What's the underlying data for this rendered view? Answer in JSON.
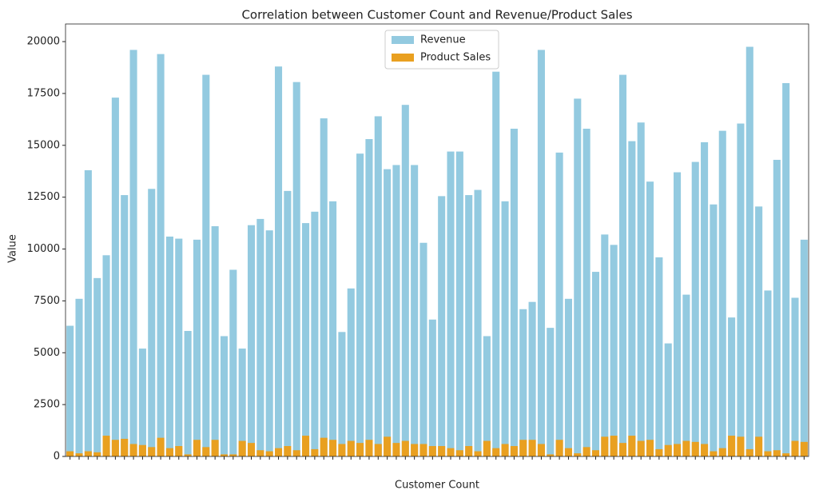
{
  "chart_data": {
    "type": "bar",
    "title": "Correlation between Customer Count and Revenue/Product Sales",
    "x_label": "Customer Count",
    "y_label": "Value",
    "categories": [
      null,
      null,
      null,
      null,
      null,
      null,
      null,
      null,
      null,
      null,
      null,
      null,
      null,
      null,
      null,
      null,
      null,
      null,
      null,
      null,
      null,
      null,
      null,
      null,
      null,
      null,
      null,
      null,
      null,
      null,
      null,
      null,
      null,
      null,
      null,
      null,
      null,
      null,
      null,
      null,
      null,
      null,
      null,
      null,
      null,
      null,
      null,
      null,
      null,
      null,
      null,
      null,
      null,
      null,
      null,
      null,
      null,
      null,
      null,
      null,
      null,
      null,
      null,
      null,
      null,
      null,
      null,
      null,
      null,
      null,
      null,
      null,
      null,
      null,
      null,
      null,
      null,
      null,
      null,
      null,
      null,
      null
    ],
    "series": [
      {
        "name": "Revenue",
        "color": "#93cae0",
        "values": [
          6300,
          7600,
          13800,
          8600,
          9700,
          17300,
          12600,
          19600,
          5200,
          12900,
          19400,
          10600,
          10500,
          6050,
          10450,
          18400,
          11100,
          5800,
          9000,
          5200,
          11150,
          11450,
          10900,
          18800,
          12800,
          18050,
          11250,
          11800,
          16300,
          12300,
          6000,
          8100,
          14600,
          15300,
          16400,
          13850,
          14050,
          16950,
          14050,
          10300,
          6600,
          12550,
          14700,
          14700,
          12600,
          12850,
          5800,
          18550,
          12300,
          15800,
          7100,
          7450,
          19600,
          6200,
          14650,
          7600,
          17250,
          15800,
          8900,
          10700,
          10200,
          18400,
          15200,
          16100,
          13250,
          9600,
          5450,
          13700,
          7800,
          14200,
          15150,
          12150,
          15700,
          6700,
          16050,
          19750,
          12050,
          8000,
          14300,
          18000,
          7650,
          10450
        ]
      },
      {
        "name": "Product Sales",
        "color": "#e9a020",
        "values": [
          250,
          150,
          250,
          200,
          1000,
          800,
          850,
          600,
          550,
          450,
          900,
          400,
          500,
          100,
          800,
          450,
          800,
          100,
          100,
          750,
          650,
          300,
          250,
          400,
          500,
          300,
          1000,
          350,
          900,
          800,
          600,
          750,
          650,
          800,
          600,
          950,
          650,
          750,
          600,
          600,
          500,
          500,
          400,
          300,
          500,
          250,
          750,
          400,
          600,
          500,
          800,
          800,
          600,
          100,
          800,
          400,
          150,
          450,
          300,
          950,
          1000,
          650,
          1000,
          750,
          800,
          350,
          550,
          600,
          750,
          700,
          600,
          250,
          400,
          1000,
          950,
          350,
          950,
          250,
          300,
          150,
          750,
          700
        ]
      }
    ],
    "ylim": [
      0,
      20850
    ],
    "yticks": [
      0,
      2500,
      5000,
      7500,
      10000,
      12500,
      15000,
      17500,
      20000
    ],
    "legend": "upper center"
  }
}
